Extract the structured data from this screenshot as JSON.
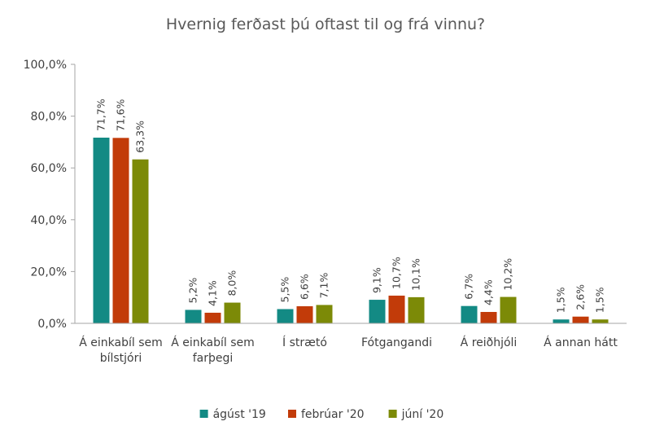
{
  "chart_data": {
    "type": "bar",
    "title": "Hvernig ferðast þú oftast til og frá vinnu?",
    "xlabel": "",
    "ylabel": "",
    "ylim": [
      0,
      100
    ],
    "yticks": [
      "0,0%",
      "20,0%",
      "40,0%",
      "60,0%",
      "80,0%",
      "100,0%"
    ],
    "ytick_values": [
      0,
      20,
      40,
      60,
      80,
      100
    ],
    "categories": [
      [
        "Á einkabíl sem",
        "bílstjóri"
      ],
      [
        "Á einkabíl sem",
        "farþegi"
      ],
      [
        "Í strætó"
      ],
      [
        "Fótgangandi"
      ],
      [
        "Á reiðhjóli"
      ],
      [
        "Á annan hátt"
      ]
    ],
    "series": [
      {
        "name": "ágúst '19",
        "color": "#138a84",
        "values": [
          71.7,
          5.2,
          5.5,
          9.1,
          6.7,
          1.5
        ],
        "labels": [
          "71,7%",
          "5,2%",
          "5,5%",
          "9,1%",
          "6,7%",
          "1,5%"
        ]
      },
      {
        "name": "febrúar '20",
        "color": "#c23b09",
        "values": [
          71.6,
          4.1,
          6.6,
          10.7,
          4.4,
          2.6
        ],
        "labels": [
          "71,6%",
          "4,1%",
          "6,6%",
          "10,7%",
          "4,4%",
          "2,6%"
        ]
      },
      {
        "name": "júní '20",
        "color": "#7c8a07",
        "values": [
          63.3,
          8.0,
          7.1,
          10.1,
          10.2,
          1.5
        ],
        "labels": [
          "63,3%",
          "8,0%",
          "7,1%",
          "10,1%",
          "10,2%",
          "1,5%"
        ]
      }
    ],
    "legend_position": "bottom",
    "grid": false
  }
}
